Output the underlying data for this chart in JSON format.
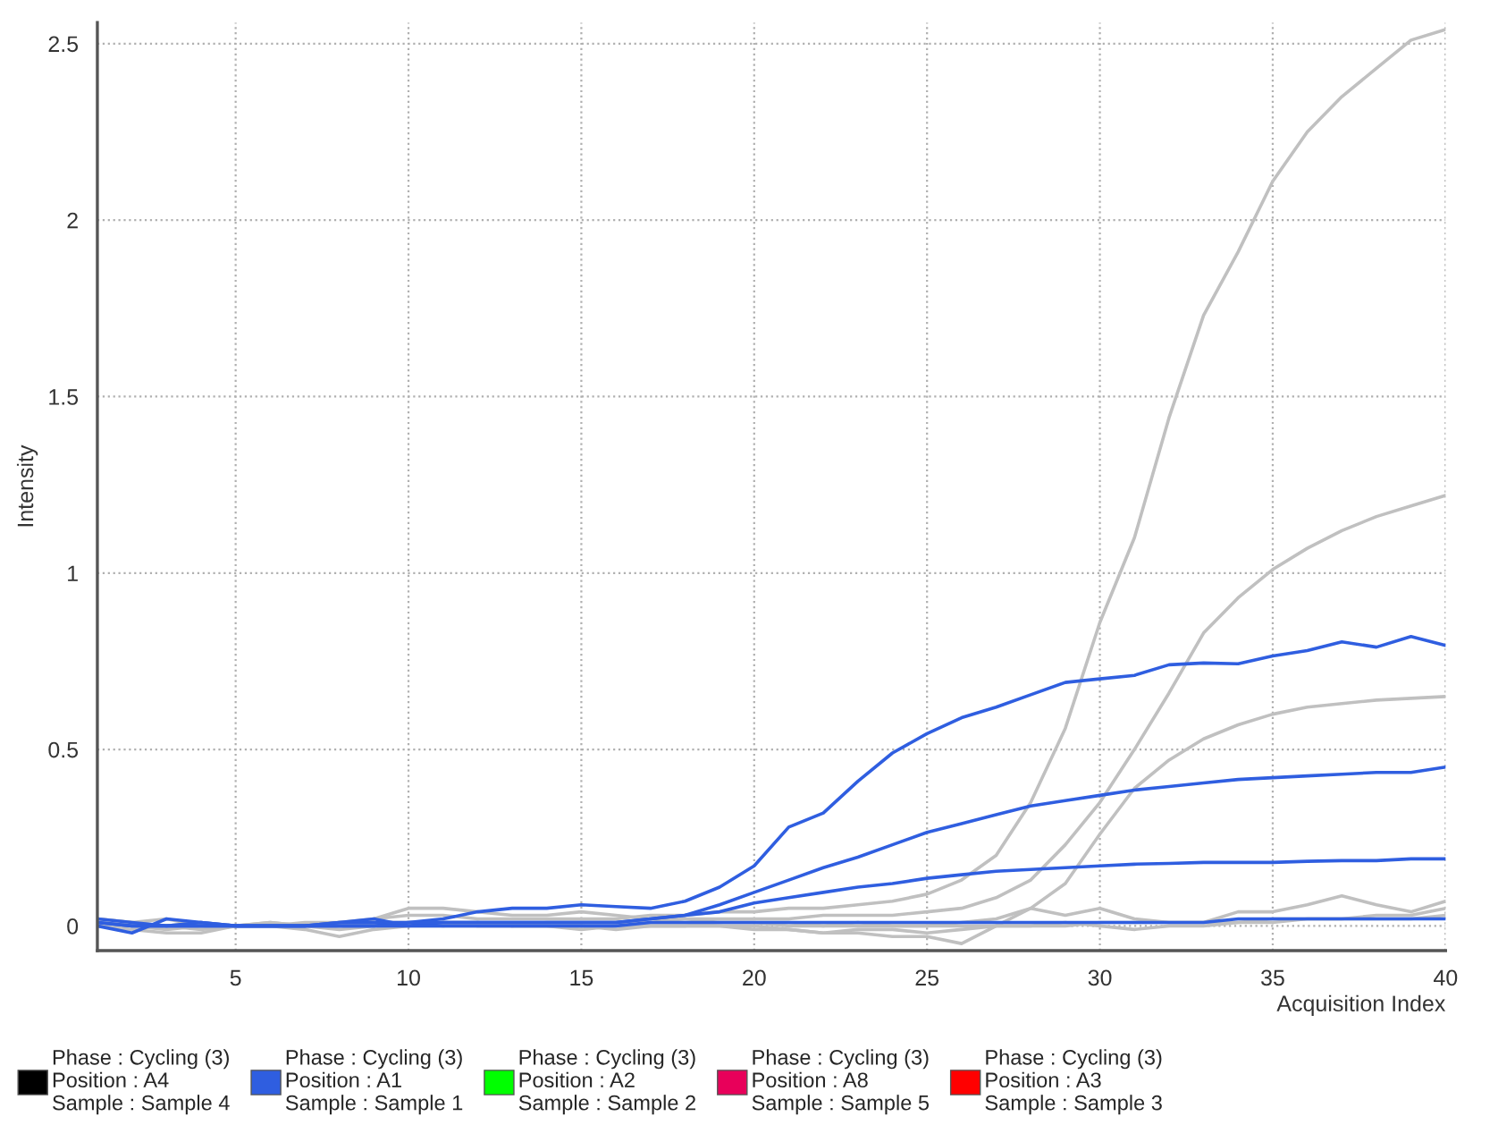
{
  "chart_data": {
    "type": "line",
    "xlabel": "Acquisition Index",
    "ylabel": "Intensity",
    "x": [
      1,
      2,
      3,
      4,
      5,
      6,
      7,
      8,
      9,
      10,
      11,
      12,
      13,
      14,
      15,
      16,
      17,
      18,
      19,
      20,
      21,
      22,
      23,
      24,
      25,
      26,
      27,
      28,
      29,
      30,
      31,
      32,
      33,
      34,
      35,
      36,
      37,
      38,
      39,
      40
    ],
    "xlim": [
      1,
      40
    ],
    "xticks": [
      5,
      10,
      15,
      20,
      25,
      30,
      35,
      40
    ],
    "ylim": [
      -0.07,
      2.56
    ],
    "yticks": [
      0,
      0.5,
      1,
      1.5,
      2,
      2.5
    ],
    "grid": true,
    "legend": "bottom",
    "marker": "none",
    "line_style": "solid",
    "series": [
      {
        "color": "#c0c0c0",
        "values": [
          0.01,
          0.0,
          -0.01,
          0.0,
          0.0,
          0.01,
          0.0,
          0.01,
          0.02,
          0.03,
          0.03,
          0.02,
          0.02,
          0.02,
          0.02,
          0.02,
          0.03,
          0.03,
          0.04,
          0.04,
          0.05,
          0.05,
          0.06,
          0.07,
          0.09,
          0.13,
          0.2,
          0.35,
          0.56,
          0.86,
          1.1,
          1.44,
          1.73,
          1.91,
          2.11,
          2.25,
          2.35,
          2.43,
          2.51,
          2.54
        ]
      },
      {
        "color": "#c0c0c0",
        "values": [
          0.02,
          0.01,
          0.0,
          -0.01,
          0.0,
          0.0,
          0.01,
          0.01,
          0.0,
          0.01,
          0.01,
          0.01,
          0.0,
          0.01,
          0.01,
          0.01,
          0.01,
          0.02,
          0.02,
          0.02,
          0.02,
          0.03,
          0.03,
          0.03,
          0.04,
          0.05,
          0.08,
          0.13,
          0.23,
          0.35,
          0.5,
          0.66,
          0.83,
          0.93,
          1.01,
          1.07,
          1.12,
          1.16,
          1.19,
          1.22
        ]
      },
      {
        "color": "#c0c0c0",
        "values": [
          0.0,
          -0.01,
          -0.02,
          -0.02,
          0.0,
          0.0,
          -0.01,
          -0.03,
          -0.01,
          0.0,
          0.01,
          0.0,
          0.0,
          0.0,
          -0.01,
          0.0,
          0.0,
          0.0,
          0.0,
          -0.01,
          -0.01,
          -0.02,
          -0.02,
          -0.03,
          -0.03,
          -0.05,
          0.0,
          0.05,
          0.12,
          0.26,
          0.39,
          0.47,
          0.53,
          0.57,
          0.6,
          0.62,
          0.63,
          0.64,
          0.645,
          0.65
        ]
      },
      {
        "color": "#c0c0c0",
        "values": [
          0.01,
          0.0,
          0.0,
          0.01,
          0.0,
          0.0,
          0.0,
          0.0,
          0.02,
          0.05,
          0.05,
          0.04,
          0.03,
          0.03,
          0.04,
          0.03,
          0.02,
          0.02,
          0.01,
          0.01,
          0.0,
          0.0,
          0.01,
          0.0,
          0.0,
          0.01,
          0.02,
          0.05,
          0.03,
          0.05,
          0.02,
          0.01,
          0.01,
          0.04,
          0.04,
          0.06,
          0.085,
          0.06,
          0.04,
          0.07
        ]
      },
      {
        "color": "#c0c0c0",
        "values": [
          0.02,
          0.01,
          0.02,
          0.0,
          0.0,
          0.01,
          0.0,
          -0.01,
          0.0,
          0.0,
          0.0,
          0.01,
          0.0,
          0.0,
          0.0,
          -0.01,
          0.0,
          0.0,
          0.0,
          0.0,
          -0.01,
          -0.02,
          -0.01,
          -0.01,
          -0.02,
          -0.01,
          0.0,
          0.0,
          0.01,
          0.0,
          -0.01,
          0.0,
          0.0,
          0.01,
          0.01,
          0.02,
          0.02,
          0.03,
          0.03,
          0.05
        ]
      },
      {
        "color": "#c0c0c0",
        "values": [
          0.0,
          0.0,
          0.0,
          0.0,
          0.0,
          0.0,
          0.0,
          0.0,
          0.01,
          0.01,
          0.0,
          0.0,
          0.0,
          0.0,
          0.0,
          0.0,
          0.0,
          0.0,
          0.01,
          0.01,
          0.01,
          0.0,
          0.0,
          0.0,
          0.0,
          0.0,
          0.0,
          0.0,
          0.0,
          0.01,
          0.01,
          0.01,
          0.01,
          0.01,
          0.02,
          0.02,
          0.02,
          0.02,
          0.02,
          0.03
        ]
      },
      {
        "name": "Phase : Cycling (3)\nPosition : A4\nSample : Sample 4",
        "color": "#000000",
        "values": [
          null,
          null,
          null,
          null,
          null,
          null,
          null,
          null,
          null,
          null,
          null,
          null,
          null,
          null,
          null,
          null,
          null,
          null,
          null,
          null,
          null,
          null,
          null,
          null,
          null,
          null,
          null,
          null,
          null,
          null,
          null,
          null,
          null,
          null,
          null,
          null,
          null,
          null,
          null,
          null
        ]
      },
      {
        "name": "Phase : Cycling (3)\nPosition : A1\nSample : Sample 1",
        "color": "#2f5ee0",
        "values": [
          0.02,
          0.01,
          0.0,
          0.01,
          0.0,
          0.0,
          0.0,
          0.01,
          0.01,
          0.01,
          0.02,
          0.04,
          0.05,
          0.05,
          0.06,
          0.055,
          0.05,
          0.07,
          0.11,
          0.17,
          0.28,
          0.32,
          0.41,
          0.49,
          0.545,
          0.59,
          0.62,
          0.655,
          0.69,
          0.7,
          0.71,
          0.74,
          0.745,
          0.743,
          0.765,
          0.78,
          0.805,
          0.79,
          0.82,
          0.795
        ]
      },
      {
        "name": "Phase : Cycling (3)\nPosition : A2\nSample : Sample 2",
        "color": "#00ff00",
        "values": [
          null,
          null,
          null,
          null,
          null,
          null,
          null,
          null,
          null,
          null,
          null,
          null,
          null,
          null,
          null,
          null,
          null,
          null,
          null,
          null,
          null,
          null,
          null,
          null,
          null,
          null,
          null,
          null,
          null,
          null,
          null,
          null,
          null,
          null,
          null,
          null,
          null,
          null,
          null,
          null
        ]
      },
      {
        "name": "Phase : Cycling (3)\nPosition : A8\nSample : Sample 5",
        "color": "#e8005a",
        "values": [
          null,
          null,
          null,
          null,
          null,
          null,
          null,
          null,
          null,
          null,
          null,
          null,
          null,
          null,
          null,
          null,
          null,
          null,
          null,
          null,
          null,
          null,
          null,
          null,
          null,
          null,
          null,
          null,
          null,
          null,
          null,
          null,
          null,
          null,
          null,
          null,
          null,
          null,
          null,
          null
        ]
      },
      {
        "name": "Phase : Cycling (3)\nPosition : A3\nSample : Sample 3",
        "color": "#ff0000",
        "values": [
          null,
          null,
          null,
          null,
          null,
          null,
          null,
          null,
          null,
          null,
          null,
          null,
          null,
          null,
          null,
          null,
          null,
          null,
          null,
          null,
          null,
          null,
          null,
          null,
          null,
          null,
          null,
          null,
          null,
          null,
          null,
          null,
          null,
          null,
          null,
          null,
          null,
          null,
          null,
          null
        ]
      },
      {
        "color": "#2f5ee0",
        "values": [
          0.0,
          -0.02,
          0.02,
          0.01,
          0.0,
          0.0,
          0.0,
          0.01,
          0.02,
          0.0,
          0.01,
          0.01,
          0.01,
          0.01,
          0.01,
          0.01,
          0.02,
          0.03,
          0.06,
          0.095,
          0.13,
          0.165,
          0.195,
          0.23,
          0.265,
          0.29,
          0.315,
          0.34,
          0.355,
          0.37,
          0.385,
          0.395,
          0.405,
          0.415,
          0.42,
          0.425,
          0.43,
          0.435,
          0.435,
          0.45
        ]
      },
      {
        "color": "#2f5ee0",
        "values": [
          0.01,
          0.0,
          0.0,
          0.0,
          0.0,
          0.0,
          0.0,
          0.0,
          0.0,
          0.01,
          0.01,
          0.01,
          0.01,
          0.01,
          0.01,
          0.01,
          0.02,
          0.03,
          0.04,
          0.065,
          0.08,
          0.095,
          0.11,
          0.12,
          0.135,
          0.145,
          0.155,
          0.16,
          0.165,
          0.17,
          0.175,
          0.177,
          0.18,
          0.18,
          0.18,
          0.183,
          0.185,
          0.185,
          0.19,
          0.19
        ]
      },
      {
        "color": "#2f5ee0",
        "values": [
          0.01,
          0.0,
          0.0,
          0.0,
          0.0,
          0.0,
          0.0,
          0.0,
          0.0,
          0.0,
          0.0,
          0.0,
          0.0,
          0.0,
          0.0,
          0.0,
          0.01,
          0.01,
          0.01,
          0.01,
          0.01,
          0.01,
          0.01,
          0.01,
          0.01,
          0.01,
          0.01,
          0.01,
          0.01,
          0.01,
          0.01,
          0.01,
          0.01,
          0.02,
          0.02,
          0.02,
          0.02,
          0.02,
          0.02,
          0.02
        ]
      }
    ]
  }
}
